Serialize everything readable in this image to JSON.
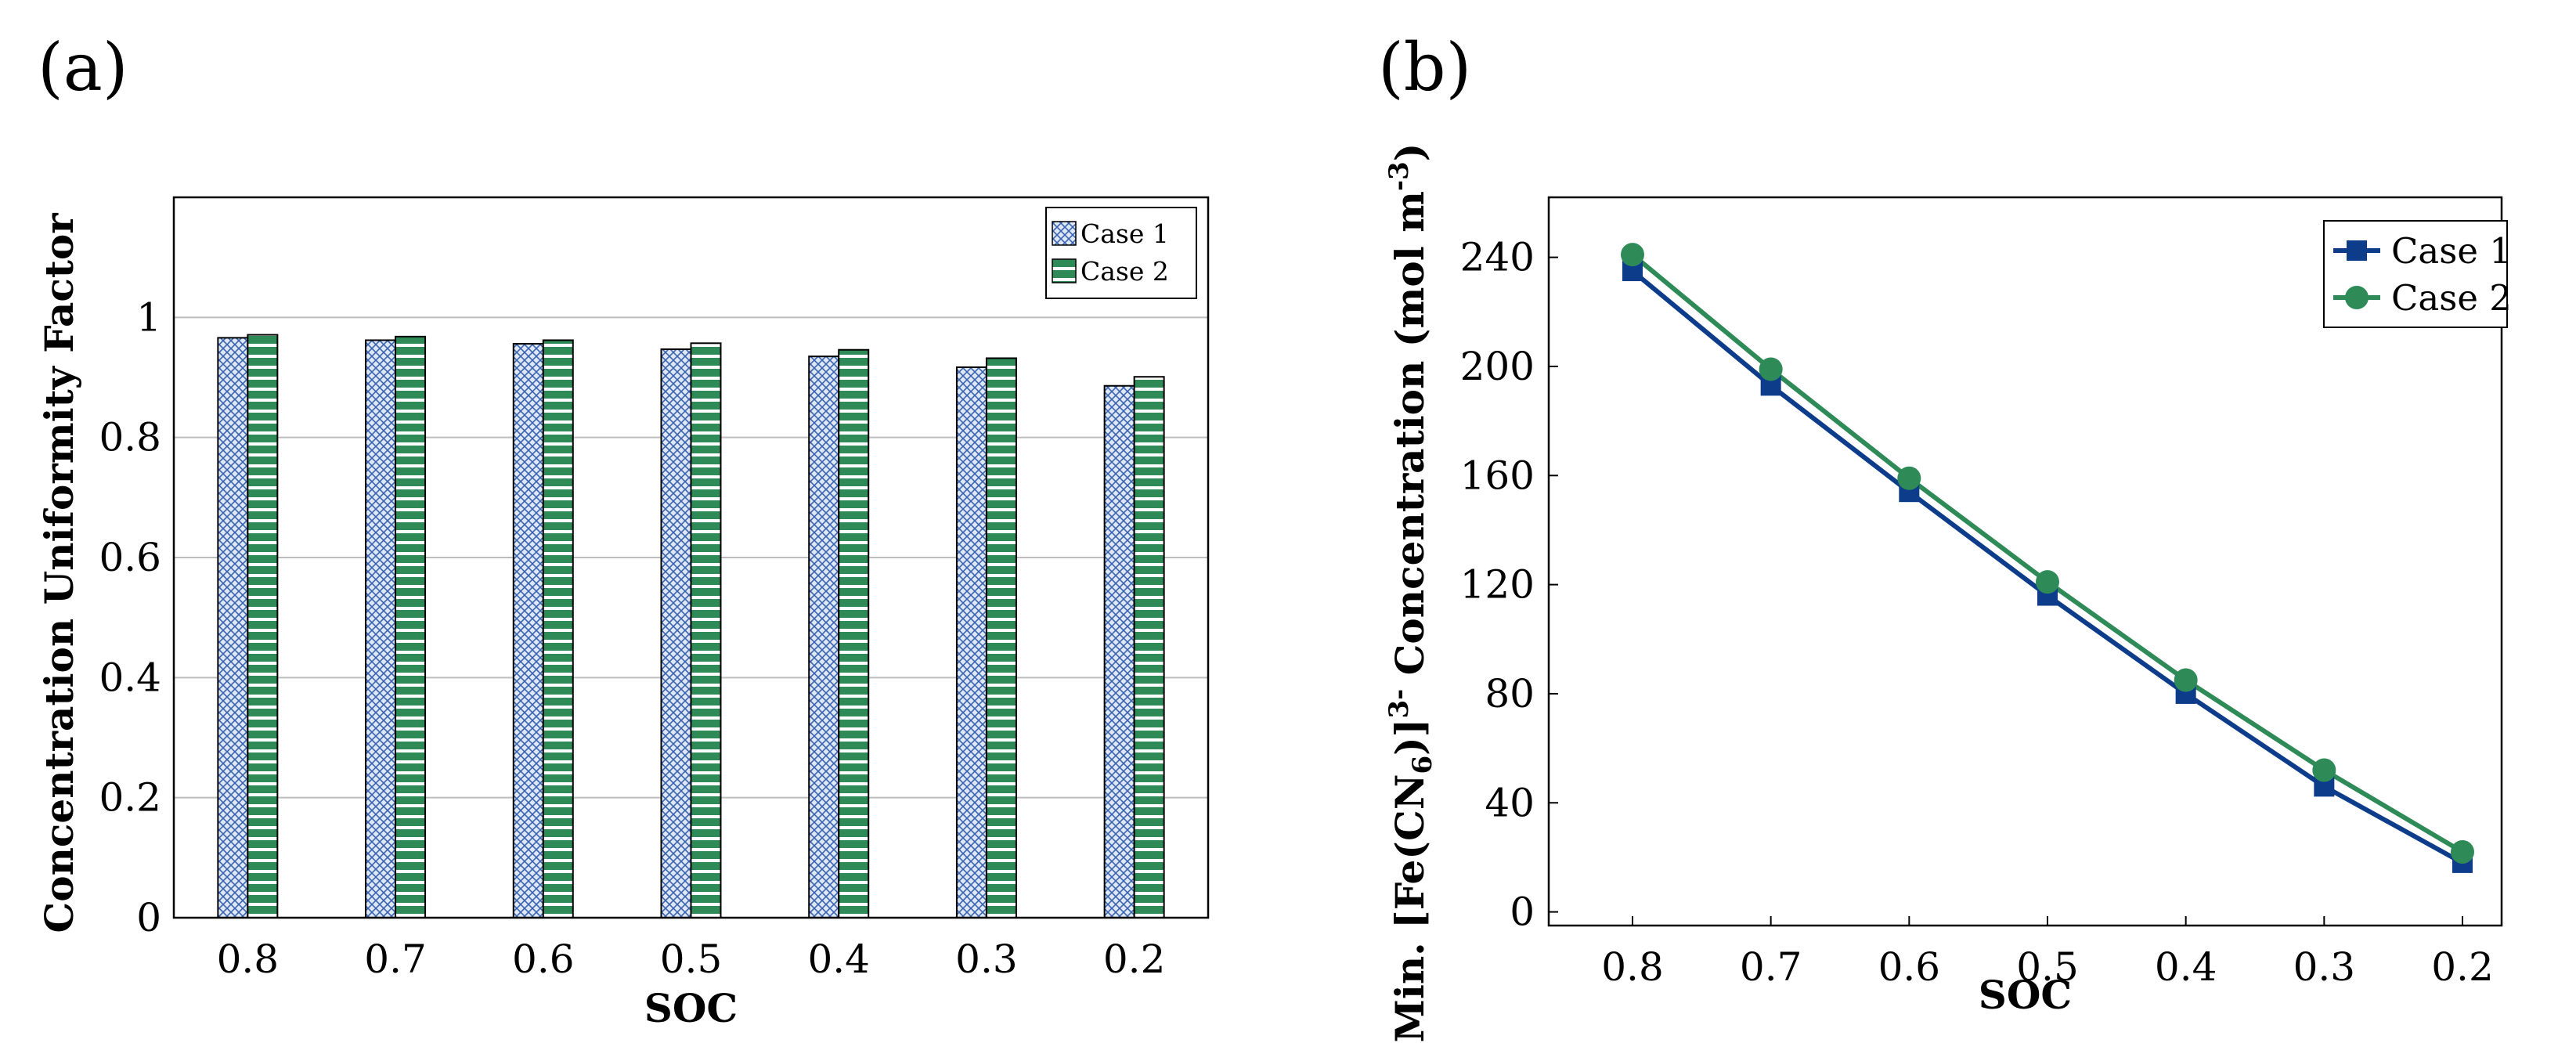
{
  "panel_a_label": "(a)",
  "panel_b_label": "(b)",
  "colors": {
    "case1_bar_fill": "#dde7f5",
    "case1_bar_pattern": "#3b64b0",
    "case2_bar_fill": "#2e8b57",
    "case1_line": "#0d3d8a",
    "case2_line": "#2e8b57",
    "grid": "#bdbdbd"
  },
  "chart_data": [
    {
      "type": "bar",
      "title": "",
      "xlabel": "SOC",
      "ylabel": "Concentration Uniformity Factor",
      "categories": [
        "0.8",
        "0.7",
        "0.6",
        "0.5",
        "0.4",
        "0.3",
        "0.2"
      ],
      "series": [
        {
          "name": "Case 1",
          "values": [
            0.966,
            0.962,
            0.956,
            0.947,
            0.935,
            0.917,
            0.886
          ]
        },
        {
          "name": "Case 2",
          "values": [
            0.971,
            0.968,
            0.962,
            0.957,
            0.946,
            0.932,
            0.901
          ]
        }
      ],
      "ylim": [
        0,
        1.2
      ],
      "yticks": [
        "0",
        "0.2",
        "0.4",
        "0.6",
        "0.8",
        "1"
      ],
      "grid": "horizontal",
      "legend_position": "top-right"
    },
    {
      "type": "line",
      "title": "",
      "xlabel": "SOC",
      "ylabel_parts": {
        "prefix": "Min.  [Fe(CN",
        "sub": "6",
        "mid": ")]",
        "sup": "3-",
        "suffix": " Concentration (mol m",
        "unit_sup": "-3",
        "end": ")"
      },
      "categories": [
        "0.8",
        "0.7",
        "0.6",
        "0.5",
        "0.4",
        "0.3",
        "0.2"
      ],
      "series": [
        {
          "name": "Case 1",
          "marker": "square",
          "values": [
            235,
            193,
            154,
            116,
            80,
            46,
            18
          ]
        },
        {
          "name": "Case 2",
          "marker": "circle",
          "values": [
            241,
            199,
            159,
            121,
            85,
            52,
            22
          ]
        }
      ],
      "ylim": [
        -5,
        262
      ],
      "yticks": [
        "0",
        "40",
        "80",
        "120",
        "160",
        "200",
        "240"
      ],
      "grid": "none",
      "legend_position": "top-right"
    }
  ]
}
